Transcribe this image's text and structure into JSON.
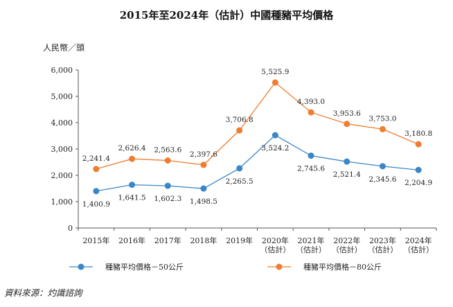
{
  "chart_data": {
    "type": "line",
    "title": "2015年至2024年（估計）中國種豬平均價格",
    "ylabel": "人民幣／頭",
    "xlabel": "",
    "categories": [
      [
        "2015年"
      ],
      [
        "2016年"
      ],
      [
        "2017年"
      ],
      [
        "2018年"
      ],
      [
        "2019年"
      ],
      [
        "2020年",
        "（估計）"
      ],
      [
        "2021年",
        "（估計）"
      ],
      [
        "2022年",
        "（估計）"
      ],
      [
        "2023年",
        "（估計）"
      ],
      [
        "2024年",
        "（估計）"
      ]
    ],
    "yticks": [
      "0",
      "1,000",
      "2,000",
      "3,000",
      "4,000",
      "5,000",
      "6,000"
    ],
    "ylim": [
      0,
      6000
    ],
    "grid": false,
    "legend_position": "bottom",
    "series": [
      {
        "name": "種豬平均價格－50公斤",
        "color": "#3a86c8",
        "values": [
          1400.9,
          1641.5,
          1602.3,
          1498.5,
          2265.5,
          3524.2,
          2745.6,
          2521.4,
          2345.6,
          2204.9
        ],
        "labels": [
          "1,400.9",
          "1,641.5",
          "1,602.3",
          "1,498.5",
          "2,265.5",
          "3,524.2",
          "2,745.6",
          "2,521.4",
          "2,345.6",
          "2,204.9"
        ],
        "label_side": "below"
      },
      {
        "name": "種豬平均價格－80公斤",
        "color": "#ee7d31",
        "values": [
          2241.4,
          2626.4,
          2563.6,
          2397.6,
          3706.8,
          5525.9,
          4393.0,
          3953.6,
          3753.0,
          3180.8
        ],
        "labels": [
          "2,241.4",
          "2,626.4",
          "2,563.6",
          "2,397.6",
          "3,706.8",
          "5,525.9",
          "4,393.0",
          "3,953.6",
          "3,753.0",
          "3,180.8"
        ],
        "label_side": "above"
      }
    ],
    "source": "資料來源：灼識諮詢"
  }
}
